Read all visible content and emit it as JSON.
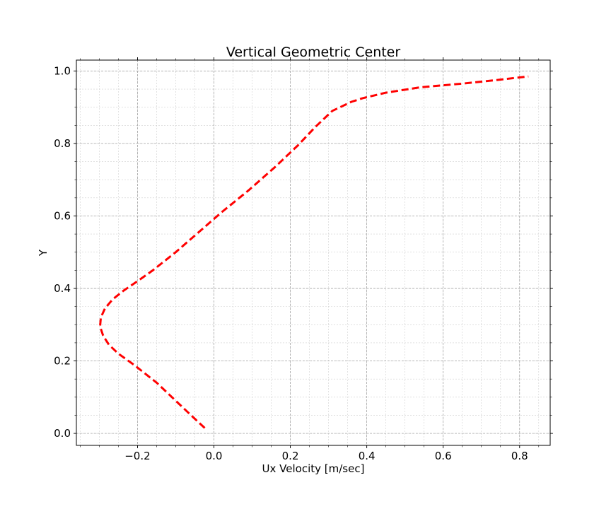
{
  "chart_data": {
    "type": "line",
    "title": "Vertical Geometric Center",
    "xlabel": "Ux Velocity [m/sec]",
    "ylabel": "Y",
    "xlim": [
      -0.36,
      0.88
    ],
    "ylim": [
      -0.033,
      1.03
    ],
    "x_ticks": [
      -0.2,
      0.0,
      0.2,
      0.4,
      0.6,
      0.8
    ],
    "x_tick_labels": [
      "−0.2",
      "0.0",
      "0.2",
      "0.4",
      "0.6",
      "0.8"
    ],
    "y_ticks": [
      0.0,
      0.2,
      0.4,
      0.6,
      0.8,
      1.0
    ],
    "y_tick_labels": [
      "0.0",
      "0.2",
      "0.4",
      "0.6",
      "0.8",
      "1.0"
    ],
    "grid": true,
    "minor_grid": true,
    "series": [
      {
        "color": "#ff0000",
        "line_style": "dashed",
        "x": [
          -0.024,
          -0.06,
          -0.1,
          -0.15,
          -0.21,
          -0.25,
          -0.275,
          -0.29,
          -0.298,
          -0.296,
          -0.285,
          -0.265,
          -0.235,
          -0.2,
          -0.16,
          -0.1,
          -0.04,
          0.02,
          0.09,
          0.16,
          0.22,
          0.265,
          0.29,
          0.31,
          0.33,
          0.36,
          0.39,
          0.45,
          0.54,
          0.65,
          0.74,
          0.823
        ],
        "y": [
          0.015,
          0.05,
          0.09,
          0.14,
          0.19,
          0.22,
          0.245,
          0.27,
          0.295,
          0.32,
          0.345,
          0.37,
          0.395,
          0.42,
          0.45,
          0.5,
          0.555,
          0.61,
          0.67,
          0.735,
          0.795,
          0.845,
          0.87,
          0.89,
          0.9,
          0.915,
          0.925,
          0.94,
          0.955,
          0.965,
          0.975,
          0.985
        ]
      }
    ]
  }
}
